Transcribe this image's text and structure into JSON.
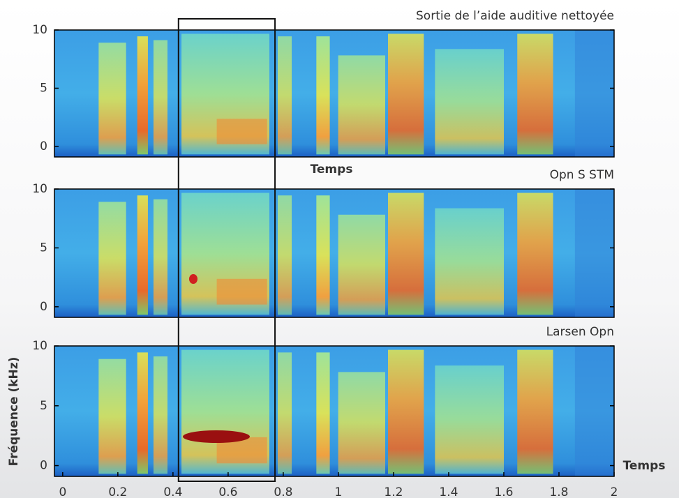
{
  "chart_data": [
    {
      "type": "spectrogram",
      "title": "Sortie de l’aide auditive nettoyée",
      "xlabel": "Temps",
      "xlim": [
        -0.03,
        2
      ],
      "ylim": [
        -0.9,
        10
      ],
      "yticks": [
        0,
        5,
        10
      ]
    },
    {
      "type": "spectrogram",
      "title": "Opn S STM",
      "xlim": [
        -0.03,
        2
      ],
      "ylim": [
        -0.9,
        10
      ],
      "yticks": [
        0,
        5,
        10
      ]
    },
    {
      "type": "spectrogram",
      "title": "Larsen Opn",
      "xlabel": "Temps",
      "ylabel": "Fréquence (kHz)",
      "xlim": [
        -0.03,
        2
      ],
      "ylim": [
        -0.9,
        10
      ],
      "yticks": [
        0,
        5,
        10
      ],
      "xticks": [
        0,
        0.2,
        0.4,
        0.6,
        0.8,
        1,
        1.2,
        1.4,
        1.6,
        1.8,
        2
      ],
      "highlight_x": [
        0.42,
        0.77
      ]
    }
  ]
}
